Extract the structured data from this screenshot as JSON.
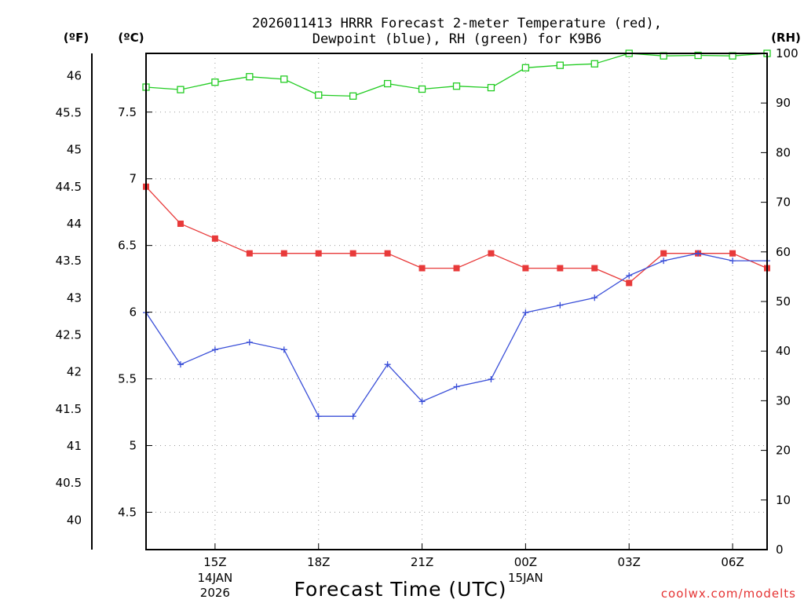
{
  "chart_data": {
    "type": "line",
    "title_line1": "2026011413 HRRR Forecast 2-meter Temperature (red),",
    "title_line2": "Dewpoint (blue), RH (green) for K9B6",
    "xlabel": "Forecast Time (UTC)",
    "credit": "coolwx.com/modelts",
    "units": {
      "fahrenheit": "(ºF)",
      "celsius": "(ºC)",
      "rh": "(RH)"
    },
    "x_hours": [
      13,
      14,
      15,
      16,
      17,
      18,
      19,
      20,
      21,
      22,
      23,
      24,
      25,
      26,
      27,
      28,
      29,
      30,
      31
    ],
    "x_ticks": [
      {
        "hour": 15,
        "label": "15Z",
        "sub1": "14JAN",
        "sub2": "2026"
      },
      {
        "hour": 18,
        "label": "18Z",
        "sub1": "",
        "sub2": ""
      },
      {
        "hour": 21,
        "label": "21Z",
        "sub1": "",
        "sub2": ""
      },
      {
        "hour": 24,
        "label": "00Z",
        "sub1": "15JAN",
        "sub2": ""
      },
      {
        "hour": 27,
        "label": "03Z",
        "sub1": "",
        "sub2": ""
      },
      {
        "hour": 30,
        "label": "06Z",
        "sub1": "",
        "sub2": ""
      }
    ],
    "y_left_f": {
      "range": [
        39.6,
        46.3
      ],
      "ticks": [
        "40",
        "40.5",
        "41",
        "41.5",
        "42",
        "42.5",
        "43",
        "43.5",
        "44",
        "44.5",
        "45",
        "45.5",
        "46"
      ]
    },
    "y_left_c": {
      "range": [
        4.22,
        7.94
      ],
      "ticks": [
        "4.5",
        "5",
        "5.5",
        "6",
        "6.5",
        "7",
        "7.5"
      ]
    },
    "y_right_rh": {
      "range": [
        0,
        100
      ],
      "ticks": [
        "0",
        "10",
        "20",
        "30",
        "40",
        "50",
        "60",
        "70",
        "80",
        "90",
        "100"
      ]
    },
    "series": [
      {
        "name": "Temperature",
        "axis": "F",
        "color": "#e83a3a",
        "marker": "filled-square",
        "values": [
          44.5,
          44.0,
          43.8,
          43.6,
          43.6,
          43.6,
          43.6,
          43.6,
          43.4,
          43.4,
          43.6,
          43.4,
          43.4,
          43.4,
          43.2,
          43.6,
          43.6,
          43.6,
          43.4
        ]
      },
      {
        "name": "Dewpoint",
        "axis": "F",
        "color": "#3a4fd8",
        "marker": "plus",
        "values": [
          42.8,
          42.1,
          42.3,
          42.4,
          42.3,
          41.4,
          41.4,
          42.1,
          41.6,
          41.8,
          41.9,
          42.8,
          42.9,
          43.0,
          43.3,
          43.5,
          43.6,
          43.5,
          43.5
        ]
      },
      {
        "name": "RH",
        "axis": "RH",
        "color": "#22cc22",
        "marker": "open-square",
        "values": [
          93.2,
          92.7,
          94.2,
          95.3,
          94.8,
          91.6,
          91.4,
          93.9,
          92.8,
          93.4,
          93.1,
          97.1,
          97.6,
          97.9,
          100,
          99.5,
          99.6,
          99.5,
          100
        ]
      }
    ]
  }
}
